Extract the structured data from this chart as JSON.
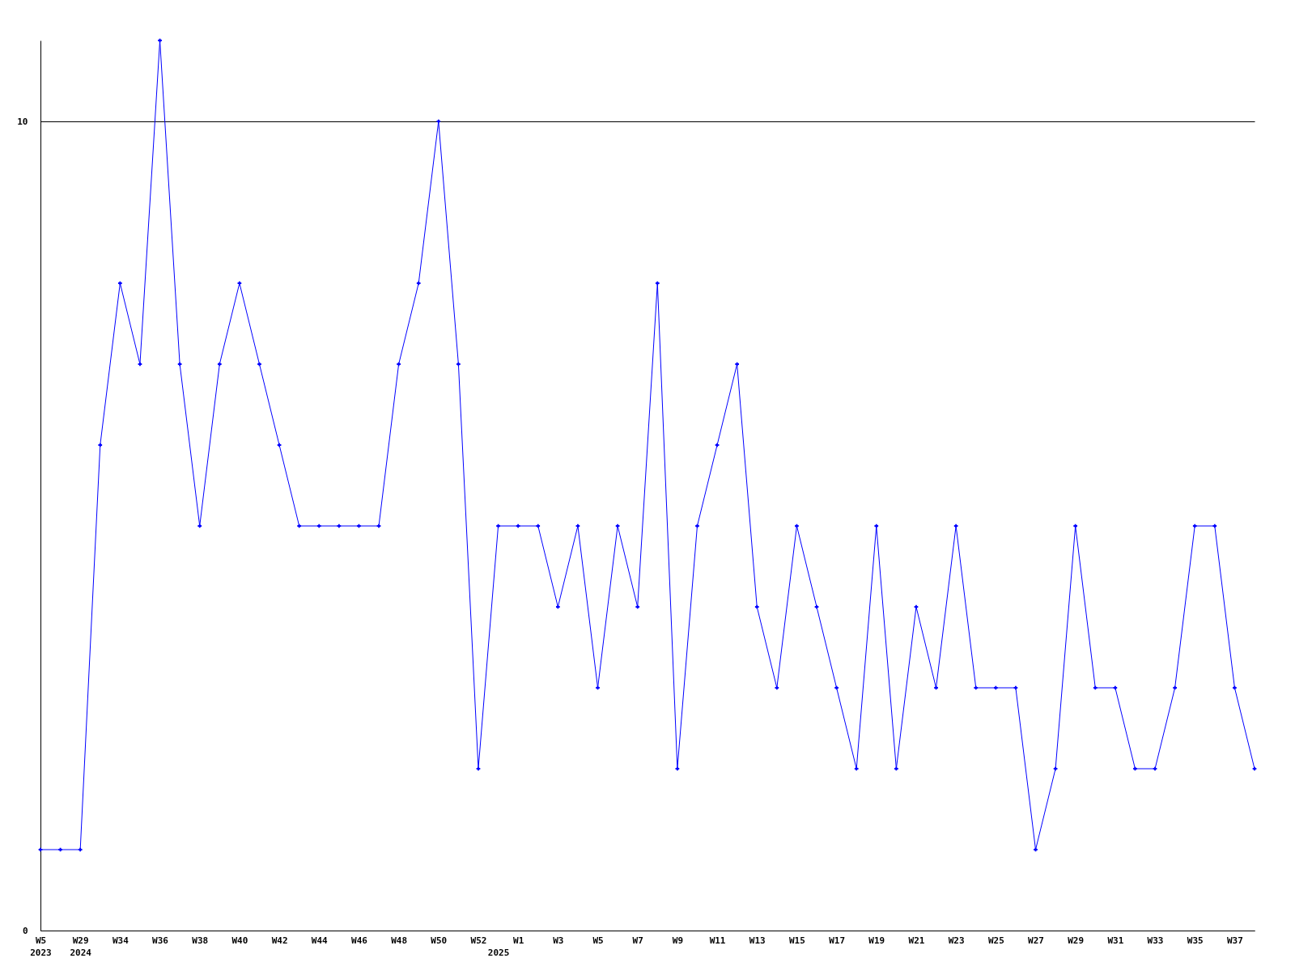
{
  "chart_data": {
    "type": "line",
    "categories": [
      "W5\n2023",
      null,
      "W29\n2024",
      null,
      "W34",
      null,
      "W36",
      null,
      "W38",
      null,
      "W40",
      null,
      "W42",
      null,
      "W44",
      null,
      "W46",
      null,
      "W48",
      null,
      "W50",
      null,
      "W52",
      "\n2025",
      "W1",
      null,
      "W3",
      null,
      "W5",
      null,
      "W7",
      null,
      "W9",
      null,
      "W11",
      null,
      "W13",
      null,
      "W15",
      null,
      "W17",
      null,
      "W19",
      null,
      "W21",
      null,
      "W23",
      null,
      "W25",
      null,
      "W27",
      null,
      "W29",
      null,
      "W31",
      null,
      "W33",
      null,
      "W35",
      null,
      "W37",
      null
    ],
    "values": [
      1,
      1,
      1,
      6,
      8,
      7,
      11,
      7,
      5,
      7,
      8,
      7,
      6,
      5,
      5,
      5,
      5,
      5,
      7,
      8,
      10,
      7,
      2,
      5,
      5,
      5,
      4,
      5,
      3,
      5,
      4,
      8,
      2,
      5,
      6,
      7,
      4,
      3,
      5,
      4,
      3,
      2,
      5,
      2,
      4,
      3,
      5,
      3,
      3,
      3,
      1,
      2,
      5,
      3,
      3,
      2,
      2,
      3,
      5,
      5,
      3,
      2
    ],
    "color": "#0000ff",
    "ylim": [
      0,
      11
    ],
    "yticks": [
      0,
      10
    ],
    "grid": "y",
    "marker": "cross",
    "line_style": "solid"
  }
}
